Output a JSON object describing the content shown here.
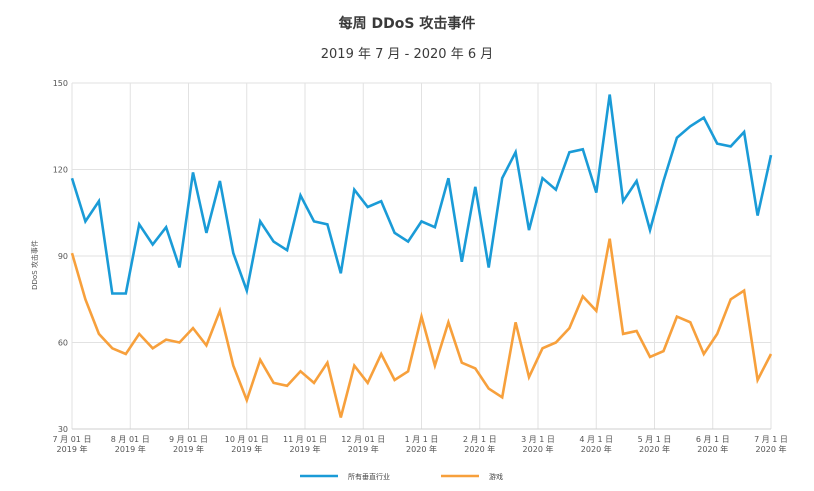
{
  "chart_data": {
    "type": "line",
    "title": "每周 DDoS 攻击事件",
    "subtitle": "2019 年 7 月 - 2020 年 6 月",
    "xlabel": "",
    "ylabel": "DDoS 攻击事件",
    "ylim": [
      30,
      150
    ],
    "yticks": [
      30,
      60,
      90,
      120,
      150
    ],
    "grid": true,
    "legend_position": "bottom",
    "x_tick_labels": [
      [
        "7 月 01 日",
        "2019 年"
      ],
      [
        "8 月 01 日",
        "2019 年"
      ],
      [
        "9 月 01 日",
        "2019 年"
      ],
      [
        "10 月 01 日",
        "2019 年"
      ],
      [
        "11 月 01 日",
        "2019 年"
      ],
      [
        "12 月 01 日",
        "2019 年"
      ],
      [
        "1 月 1 日",
        "2020 年"
      ],
      [
        "2 月 1 日",
        "2020 年"
      ],
      [
        "3 月 1 日",
        "2020 年"
      ],
      [
        "4 月 1 日",
        "2020 年"
      ],
      [
        "5 月 1 日",
        "2020 年"
      ],
      [
        "6 月 1 日",
        "2020 年"
      ],
      [
        "7 月 1 日",
        "2020 年"
      ]
    ],
    "series": [
      {
        "name": "所有垂直行业",
        "color": "#1a9bd7",
        "values": [
          117,
          102,
          109,
          77,
          77,
          101,
          94,
          100,
          86,
          119,
          98,
          116,
          91,
          78,
          102,
          95,
          92,
          111,
          102,
          101,
          84,
          113,
          107,
          109,
          98,
          95,
          102,
          100,
          117,
          88,
          114,
          86,
          117,
          126,
          99,
          117,
          113,
          126,
          127,
          112,
          146,
          109,
          116,
          99,
          116,
          131,
          135,
          138,
          129,
          128,
          133,
          104,
          125
        ]
      },
      {
        "name": "游戏",
        "color": "#f7a03c",
        "values": [
          91,
          75,
          63,
          58,
          56,
          63,
          58,
          61,
          60,
          65,
          59,
          71,
          52,
          40,
          54,
          46,
          45,
          50,
          46,
          53,
          34,
          52,
          46,
          56,
          47,
          50,
          69,
          52,
          67,
          53,
          51,
          44,
          41,
          67,
          48,
          58,
          60,
          65,
          76,
          71,
          96,
          63,
          64,
          55,
          57,
          69,
          67,
          56,
          63,
          75,
          78,
          47,
          56
        ]
      }
    ]
  }
}
